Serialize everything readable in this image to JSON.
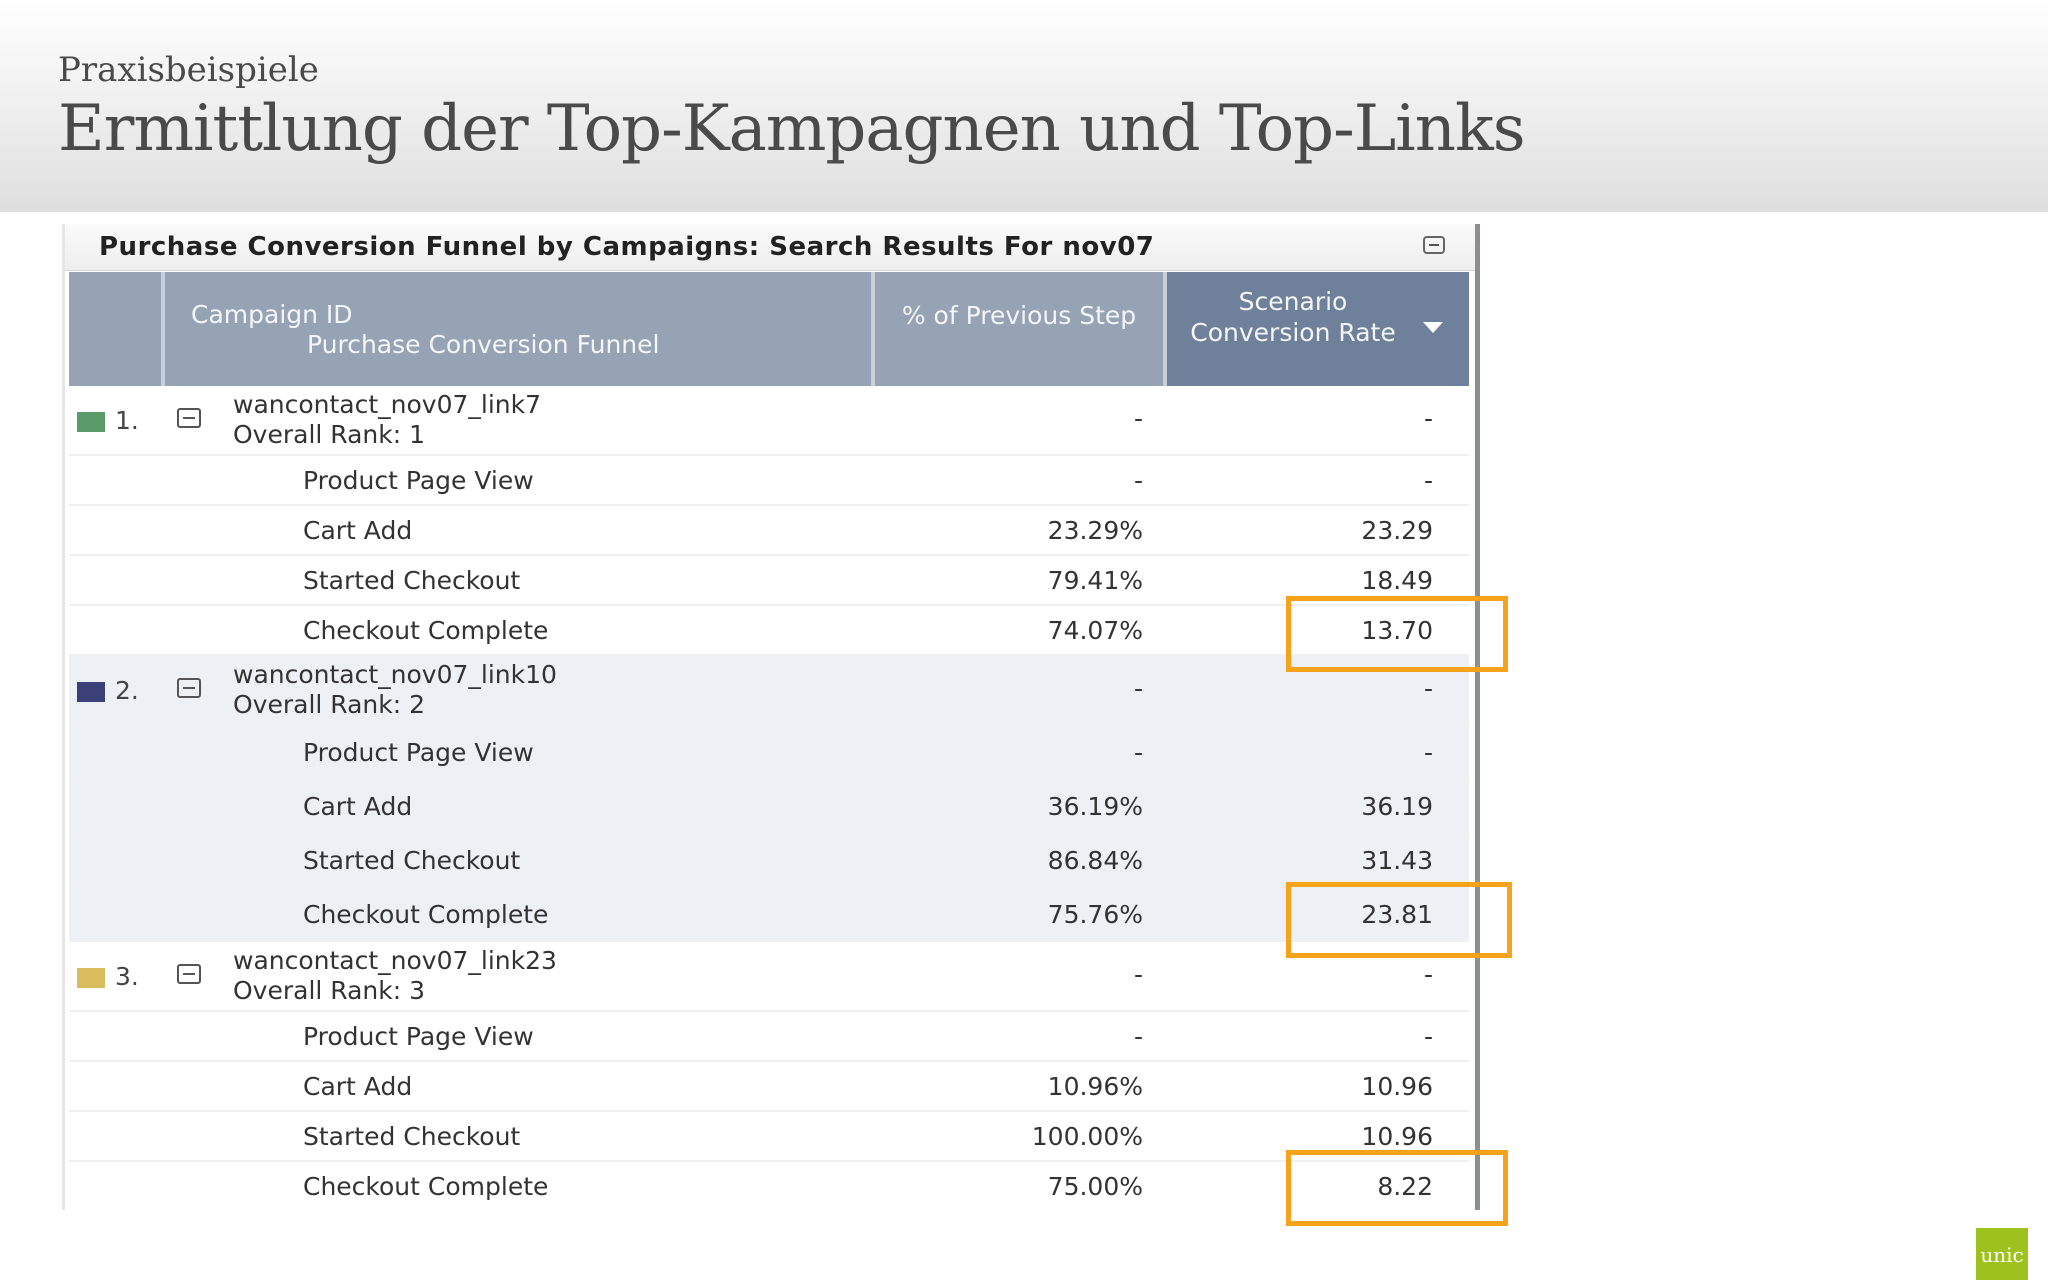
{
  "slide": {
    "kicker": "Praxisbeispiele",
    "title": "Ermittlung der Top-Kampagnen und Top-Links",
    "logo_text": "unic",
    "logo_color": "#9dc21d",
    "highlight_color": "#f7a21b"
  },
  "report": {
    "title": "Purchase Conversion Funnel by Campaigns: Search Results For nov07",
    "collapse_icon": "minus-box-icon",
    "columns": {
      "campaign_id": "Campaign ID",
      "funnel": "Purchase Conversion Funnel",
      "pct_prev": "% of Previous Step",
      "scenario_rate": "Scenario Conversion Rate",
      "sort_icon": "sort-desc-icon"
    },
    "campaigns": [
      {
        "rank": "1.",
        "color": "#5a9a68",
        "name": "wancontact_nov07_link7",
        "overall_rank": "Overall Rank: 1",
        "pct_prev": "-",
        "rate": "-",
        "steps": [
          {
            "name": "Product Page View",
            "pct_prev": "-",
            "rate": "-"
          },
          {
            "name": "Cart Add",
            "pct_prev": "23.29%",
            "rate": "23.29"
          },
          {
            "name": "Started Checkout",
            "pct_prev": "79.41%",
            "rate": "18.49"
          },
          {
            "name": "Checkout Complete",
            "pct_prev": "74.07%",
            "rate": "13.70"
          }
        ]
      },
      {
        "rank": "2.",
        "color": "#3c3f78",
        "name": "wancontact_nov07_link10",
        "overall_rank": "Overall Rank: 2",
        "pct_prev": "-",
        "rate": "-",
        "steps": [
          {
            "name": "Product Page View",
            "pct_prev": "-",
            "rate": "-"
          },
          {
            "name": "Cart Add",
            "pct_prev": "36.19%",
            "rate": "36.19"
          },
          {
            "name": "Started Checkout",
            "pct_prev": "86.84%",
            "rate": "31.43"
          },
          {
            "name": "Checkout Complete",
            "pct_prev": "75.76%",
            "rate": "23.81"
          }
        ]
      },
      {
        "rank": "3.",
        "color": "#d8bc5e",
        "name": "wancontact_nov07_link23",
        "overall_rank": "Overall Rank: 3",
        "pct_prev": "-",
        "rate": "-",
        "steps": [
          {
            "name": "Product Page View",
            "pct_prev": "-",
            "rate": "-"
          },
          {
            "name": "Cart Add",
            "pct_prev": "10.96%",
            "rate": "10.96"
          },
          {
            "name": "Started Checkout",
            "pct_prev": "100.00%",
            "rate": "10.96"
          },
          {
            "name": "Checkout Complete",
            "pct_prev": "75.00%",
            "rate": "8.22"
          }
        ]
      }
    ]
  }
}
